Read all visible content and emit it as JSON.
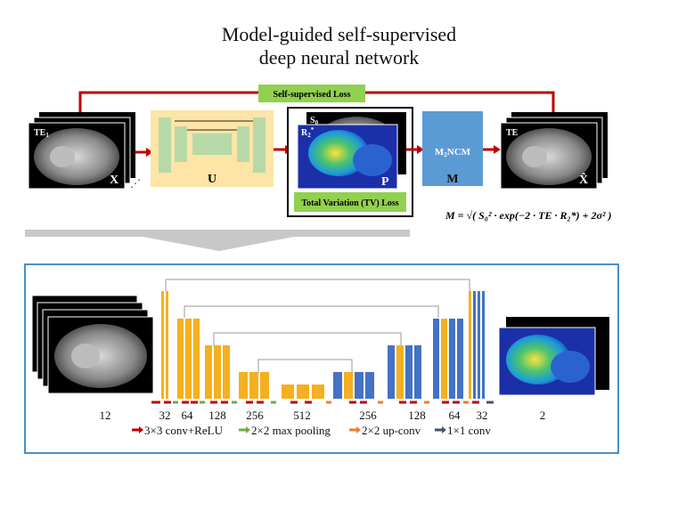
{
  "title_lines": [
    "Model-guided self-supervised",
    "deep neural network"
  ],
  "top": {
    "loss_box": "Self-supervised Loss",
    "te_label": "TE",
    "te_sub": "1",
    "te_label_right": "TE",
    "x_label": "X",
    "x_hat_label": "X̂",
    "u_label": "U",
    "s0_label": "S",
    "s0_sub": "0",
    "r2_label": "R",
    "r2_sup": "*",
    "r2_sub": "2",
    "p_label": "P",
    "tv_loss": "Total Variation (TV) Loss",
    "mncm_label": "M",
    "mncm_sub": "2",
    "mncm_rest": "NCM",
    "m_label": "M",
    "formula": "M = √( S₀² · exp(−2 · TE · R₂*) + 2σ² )"
  },
  "unet": {
    "counts": [
      "12",
      "32",
      "64",
      "128",
      "256",
      "512",
      "256",
      "128",
      "64",
      "32",
      "2"
    ],
    "legend": [
      {
        "label": "3×3 conv+ReLU",
        "color": "#c00000"
      },
      {
        "label": "2×2 max pooling",
        "color": "#70ad47"
      },
      {
        "label": "2×2 up-conv",
        "color": "#ed7d31"
      },
      {
        "label": "1×1 conv",
        "color": "#44546a"
      }
    ]
  },
  "colors": {
    "orange_bar": "#f4b01e",
    "blue_bar": "#4472c4",
    "u_box": "#fde5a6",
    "u_inner": "#b7d9a8",
    "loss_green": "#92d050",
    "mncm_blue": "#5b9bd5",
    "frame_blue": "#4a90c8",
    "red_line": "#c00000"
  }
}
